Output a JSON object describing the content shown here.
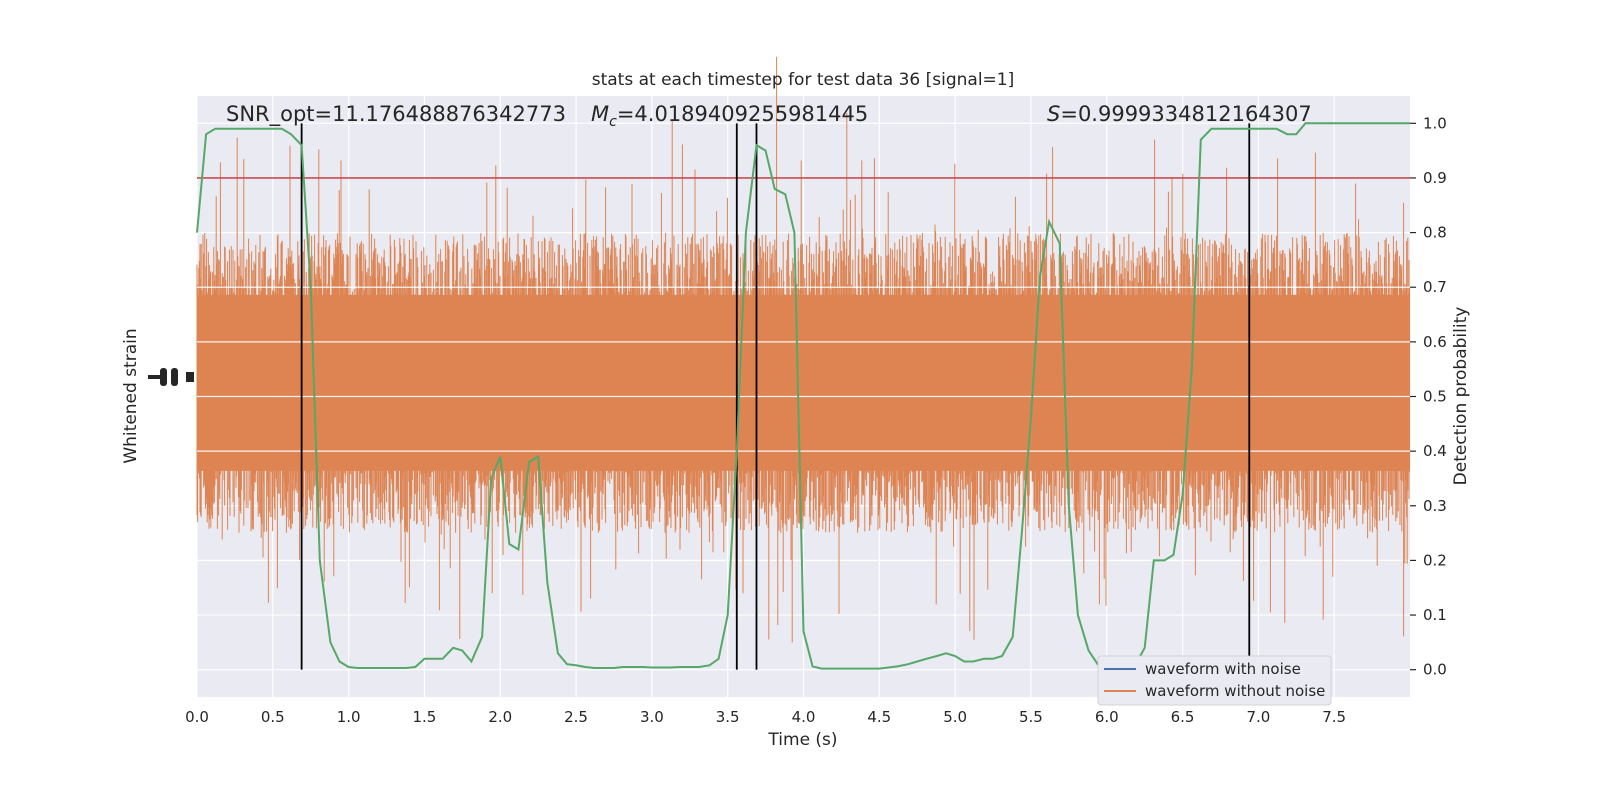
{
  "chart_data": {
    "type": "line",
    "title": "stats at each timestep for test data 36 [signal=1]",
    "xlabel": "Time (s)",
    "ylabel_left": "Whitened strain",
    "ylabel_right": "Detection probability",
    "xlim": [
      0,
      8
    ],
    "ylim_right": [
      -0.05,
      1.05
    ],
    "x_ticks": [
      0.0,
      0.5,
      1.0,
      1.5,
      2.0,
      2.5,
      3.0,
      3.5,
      4.0,
      4.5,
      5.0,
      5.5,
      6.0,
      6.5,
      7.0,
      7.5
    ],
    "x_tick_labels": [
      "0.0",
      "0.5",
      "1.0",
      "1.5",
      "2.0",
      "2.5",
      "3.0",
      "3.5",
      "4.0",
      "4.5",
      "5.0",
      "5.5",
      "6.0",
      "6.5",
      "7.0",
      "7.5"
    ],
    "y_right_ticks": [
      0.0,
      0.1,
      0.2,
      0.3,
      0.4,
      0.5,
      0.6,
      0.7,
      0.8,
      0.9,
      1.0
    ],
    "y_right_tick_labels": [
      "0.0",
      "0.1",
      "0.2",
      "0.3",
      "0.4",
      "0.5",
      "0.6",
      "0.7",
      "0.8",
      "0.9",
      "1.0"
    ],
    "annotations": {
      "snr": "SNR_opt=11.176488876342773",
      "mc_symbol": "M",
      "mc_sub": "c",
      "mc_value": "=4.0189409255981445",
      "s_symbol": "S",
      "s_value": "=0.9999334812164307"
    },
    "threshold": 0.9,
    "vertical_markers": [
      0.69,
      3.56,
      3.69,
      6.94
    ],
    "series": [
      {
        "name": "waveform with noise",
        "color": "#4c72b0",
        "note_values": "whitened strain, dense oscillation"
      },
      {
        "name": "waveform without noise",
        "color": "#dd8452"
      },
      {
        "name": "",
        "color": "#55a868",
        "x": [
          0.0,
          0.06,
          0.12,
          0.19,
          0.25,
          0.31,
          0.38,
          0.44,
          0.5,
          0.56,
          0.62,
          0.69,
          0.75,
          0.81,
          0.88,
          0.94,
          1.0,
          1.06,
          1.12,
          1.19,
          1.25,
          1.31,
          1.38,
          1.44,
          1.5,
          1.56,
          1.62,
          1.69,
          1.75,
          1.81,
          1.88,
          1.94,
          2.0,
          2.06,
          2.12,
          2.19,
          2.25,
          2.31,
          2.38,
          2.44,
          2.5,
          2.56,
          2.62,
          2.69,
          2.75,
          2.81,
          2.88,
          2.94,
          3.0,
          3.06,
          3.12,
          3.19,
          3.25,
          3.31,
          3.38,
          3.44,
          3.5,
          3.56,
          3.62,
          3.69,
          3.75,
          3.81,
          3.88,
          3.94,
          4.0,
          4.06,
          4.12,
          4.19,
          4.25,
          4.31,
          4.38,
          4.44,
          4.5,
          4.56,
          4.62,
          4.69,
          4.75,
          4.81,
          4.88,
          4.94,
          5.0,
          5.06,
          5.12,
          5.19,
          5.25,
          5.31,
          5.38,
          5.44,
          5.5,
          5.56,
          5.62,
          5.69,
          5.75,
          5.81,
          5.88,
          5.94,
          6.0,
          6.06,
          6.12,
          6.19,
          6.25,
          6.31,
          6.38,
          6.44,
          6.5,
          6.56,
          6.62,
          6.69,
          6.75,
          6.81,
          6.88,
          6.94,
          7.0,
          7.06,
          7.12,
          7.19,
          7.25,
          7.31,
          7.38,
          7.44,
          7.5,
          7.56,
          7.62,
          7.69,
          7.75,
          7.81,
          7.88,
          7.94,
          8.0
        ],
        "values": [
          0.8,
          0.98,
          0.99,
          0.99,
          0.99,
          0.99,
          0.99,
          0.99,
          0.99,
          0.99,
          0.98,
          0.96,
          0.7,
          0.2,
          0.05,
          0.015,
          0.005,
          0.003,
          0.003,
          0.003,
          0.003,
          0.003,
          0.003,
          0.005,
          0.02,
          0.02,
          0.02,
          0.04,
          0.035,
          0.015,
          0.06,
          0.35,
          0.39,
          0.23,
          0.22,
          0.38,
          0.39,
          0.16,
          0.03,
          0.01,
          0.008,
          0.005,
          0.003,
          0.003,
          0.003,
          0.005,
          0.005,
          0.005,
          0.004,
          0.004,
          0.004,
          0.005,
          0.005,
          0.005,
          0.008,
          0.02,
          0.1,
          0.4,
          0.8,
          0.96,
          0.95,
          0.88,
          0.87,
          0.8,
          0.07,
          0.006,
          0.002,
          0.002,
          0.002,
          0.002,
          0.002,
          0.002,
          0.002,
          0.004,
          0.006,
          0.01,
          0.015,
          0.02,
          0.025,
          0.03,
          0.025,
          0.015,
          0.015,
          0.02,
          0.02,
          0.025,
          0.06,
          0.25,
          0.46,
          0.72,
          0.82,
          0.78,
          0.3,
          0.1,
          0.035,
          0.01,
          0.01,
          0.01,
          0.01,
          0.01,
          0.04,
          0.2,
          0.2,
          0.21,
          0.32,
          0.55,
          0.97,
          0.99,
          0.99,
          0.99,
          0.99,
          0.99,
          0.99,
          0.99,
          0.99,
          0.98,
          0.98,
          1.0,
          1.0,
          1.0,
          1.0,
          1.0,
          1.0,
          1.0,
          1.0,
          1.0,
          1.0,
          1.0,
          1.0
        ]
      }
    ],
    "legend_placement": "lower-right",
    "grid": true
  }
}
